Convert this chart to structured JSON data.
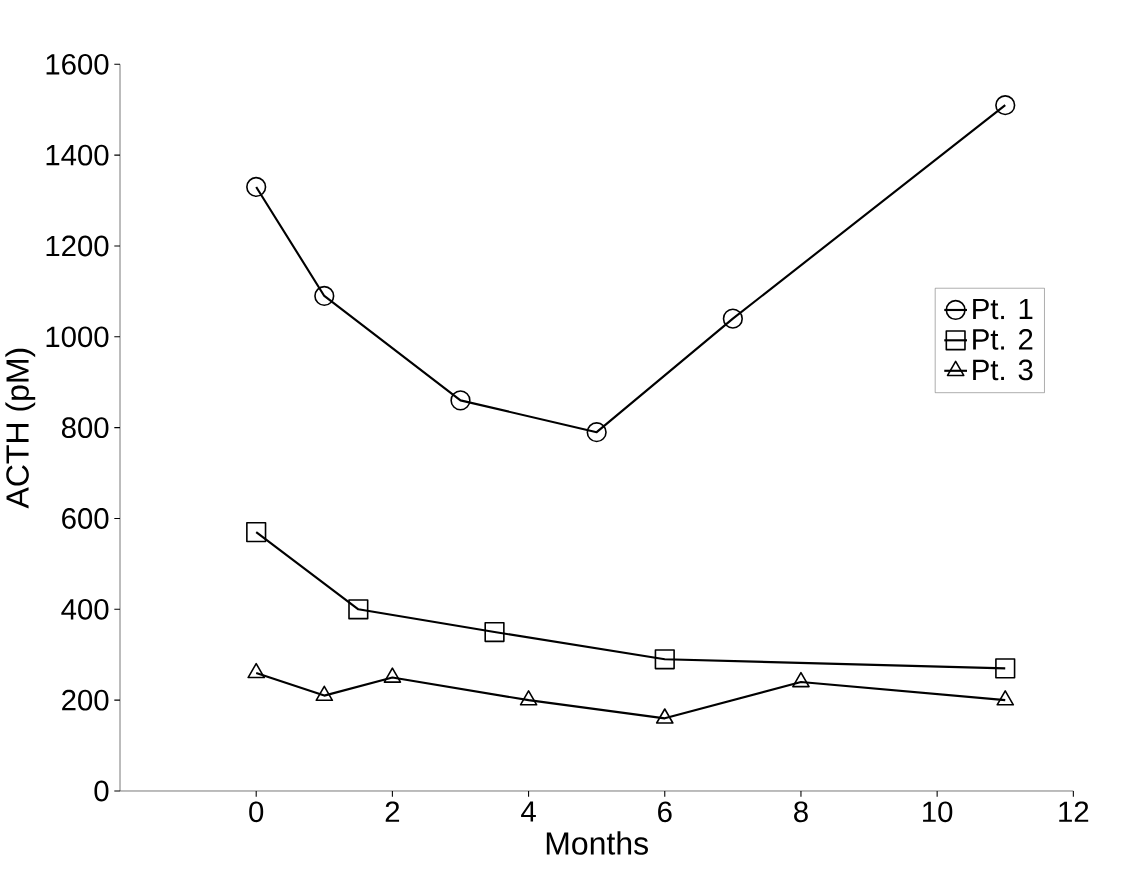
{
  "chart_data": {
    "type": "line",
    "xlabel": "Months",
    "ylabel": "ACTH (pM)",
    "xlim": [
      -2,
      12
    ],
    "xticks": [
      0,
      2,
      4,
      6,
      8,
      10,
      12
    ],
    "ylim": [
      0,
      1600
    ],
    "yticks": [
      0,
      200,
      400,
      600,
      800,
      1000,
      1200,
      1400,
      1600
    ],
    "grid": false,
    "legend": "right",
    "line_style": "solid",
    "series": [
      {
        "name": "Pt. 1",
        "color": "#000000",
        "marker": "circle",
        "x": [
          0,
          1,
          3,
          5,
          7,
          11
        ],
        "values": [
          1330,
          1090,
          860,
          790,
          1040,
          1510
        ]
      },
      {
        "name": "Pt. 2",
        "color": "#000000",
        "marker": "square",
        "x": [
          0,
          1.5,
          3.5,
          6,
          11
        ],
        "values": [
          570,
          400,
          350,
          290,
          270
        ]
      },
      {
        "name": "Pt. 3",
        "color": "#000000",
        "marker": "triangle",
        "x": [
          0,
          1,
          2,
          4,
          6,
          8,
          11
        ],
        "values": [
          260,
          210,
          250,
          200,
          160,
          240,
          200
        ]
      }
    ]
  }
}
